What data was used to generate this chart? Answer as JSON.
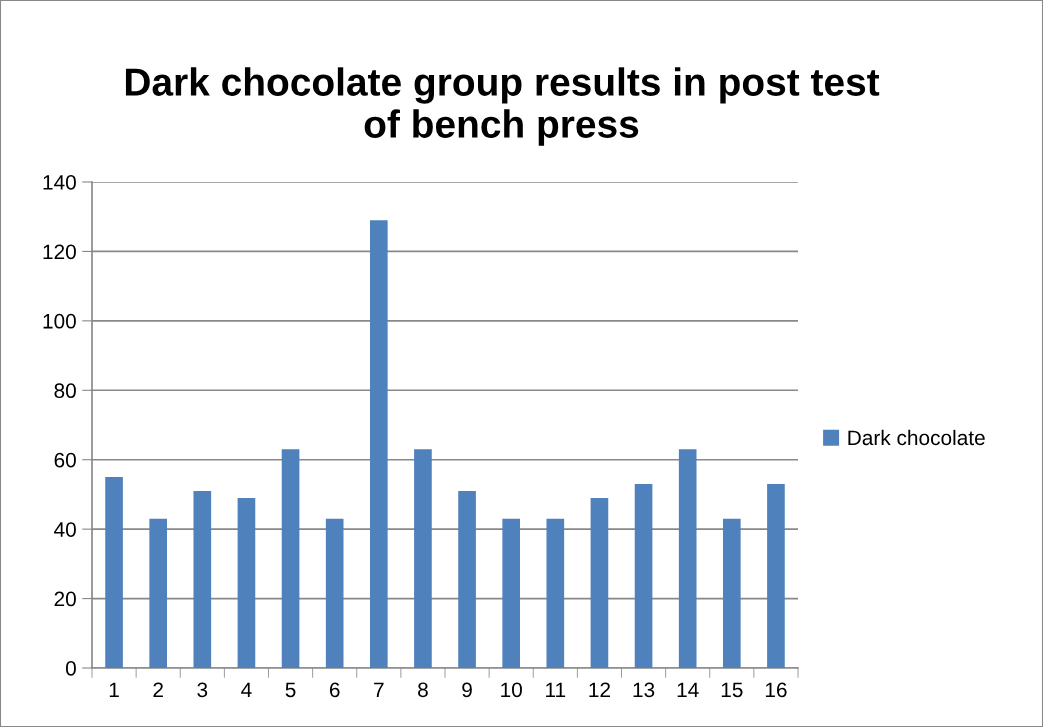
{
  "chart_data": {
    "type": "bar",
    "title": "Dark chocolate group results in post test\nof bench press",
    "categories": [
      "1",
      "2",
      "3",
      "4",
      "5",
      "6",
      "7",
      "8",
      "9",
      "10",
      "11",
      "12",
      "13",
      "14",
      "15",
      "16"
    ],
    "series": [
      {
        "name": "Dark chocolate",
        "color": "#4f81bd",
        "values": [
          55,
          43,
          51,
          49,
          63,
          43,
          129,
          63,
          51,
          43,
          43,
          49,
          53,
          63,
          43,
          53
        ]
      }
    ],
    "ylim": [
      0,
      140
    ],
    "yticks": [
      0,
      20,
      40,
      60,
      80,
      100,
      120,
      140
    ],
    "grid": "y",
    "legend": "right"
  }
}
